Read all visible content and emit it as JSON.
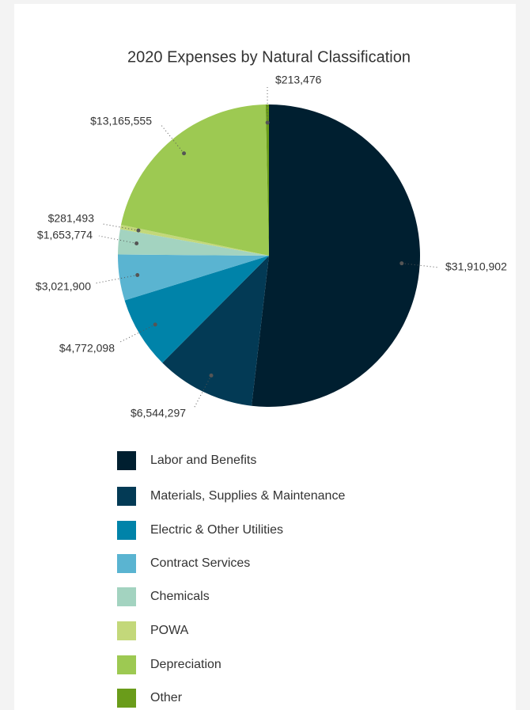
{
  "chart_data": {
    "type": "pie",
    "title": "2020 Expenses by Natural Classification",
    "categories": [
      "Labor and Benefits",
      "Materials, Supplies & Maintenance",
      "Electric & Other Utilities",
      "Contract Services",
      "Chemicals",
      "POWA",
      "Depreciation",
      "Other"
    ],
    "values": [
      31910902,
      6544297,
      4772098,
      3021900,
      1653774,
      281493,
      13165555,
      213476
    ],
    "value_labels": [
      "$31,910,902",
      "$6,544,297",
      "$4,772,098",
      "$3,021,900",
      "$1,653,774",
      "$281,493",
      "$13,165,555",
      "$213,476"
    ],
    "colors": [
      "#001f30",
      "#033a55",
      "#0083a9",
      "#5ab4d1",
      "#a3d3c0",
      "#c3d87a",
      "#9dc952",
      "#6a9c1a"
    ],
    "legend": "bottom"
  }
}
